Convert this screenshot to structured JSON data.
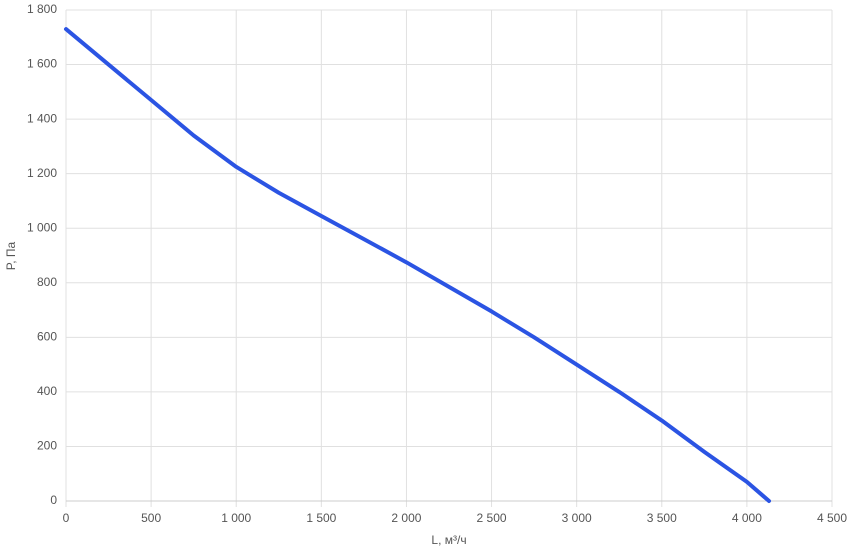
{
  "chart_data": {
    "type": "line",
    "x_label": "L, м³/ч",
    "y_label": "P, Па",
    "x": [
      0,
      250,
      500,
      750,
      1000,
      1250,
      1500,
      1750,
      2000,
      2250,
      2500,
      2750,
      3000,
      3250,
      3500,
      3750,
      4000,
      4130
    ],
    "series": [
      {
        "name": "P",
        "color": "#2b54e3",
        "values": [
          1730,
          1600,
          1470,
          1340,
          1225,
          1130,
          1045,
          960,
          875,
          785,
          695,
          600,
          500,
          400,
          295,
          180,
          70,
          0
        ]
      }
    ],
    "xlim": [
      0,
      4500
    ],
    "xticks": [
      0,
      500,
      {
        "value": 1000,
        "label": "1 000"
      },
      {
        "value": 1500,
        "label": "1 500"
      },
      {
        "value": 2000,
        "label": "2 000"
      },
      {
        "value": 2500,
        "label": "2 500"
      },
      {
        "value": 3000,
        "label": "3 000"
      },
      {
        "value": 3500,
        "label": "3 500"
      },
      {
        "value": 4000,
        "label": "4 000"
      },
      {
        "value": 4500,
        "label": "4 500"
      }
    ],
    "ylim": [
      0,
      1800
    ],
    "yticks": [
      0,
      200,
      400,
      600,
      800,
      {
        "value": 1000,
        "label": "1 000"
      },
      {
        "value": 1200,
        "label": "1 200"
      },
      {
        "value": 1400,
        "label": "1 400"
      },
      {
        "value": 1600,
        "label": "1 600"
      },
      {
        "value": 1800,
        "label": "1 800"
      }
    ],
    "grid": true
  }
}
